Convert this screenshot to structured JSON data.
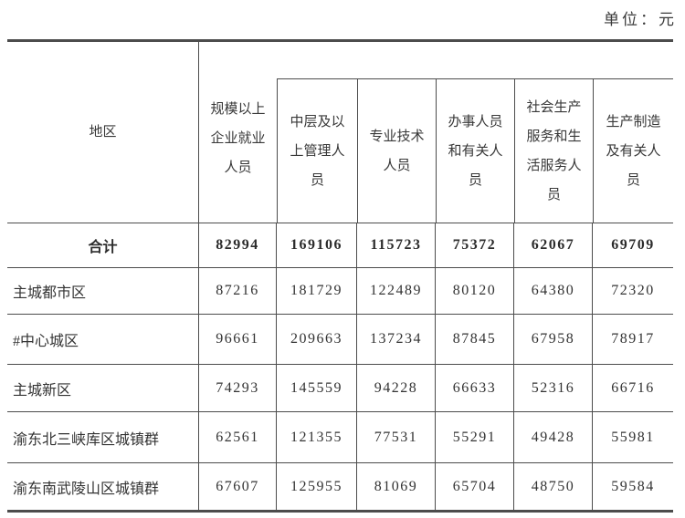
{
  "unit_label": "单位：元",
  "table": {
    "columns": {
      "region": "地区",
      "overall": "规模以上\n企业就业\n人员",
      "managers": "中层及以\n上管理人\n员",
      "professionals": "专业技术\n人员",
      "clerks": "办事人员\n和有关人\n员",
      "service": "社会生产\n服务和生\n活服务人\n员",
      "production": "生产制造\n及有关人\n员"
    },
    "rows": [
      {
        "label": "合计",
        "values": [
          "82994",
          "169106",
          "115723",
          "75372",
          "62067",
          "69709"
        ]
      },
      {
        "label": "主城都市区",
        "values": [
          "87216",
          "181729",
          "122489",
          "80120",
          "64380",
          "72320"
        ]
      },
      {
        "label": "#中心城区",
        "values": [
          "96661",
          "209663",
          "137234",
          "87845",
          "67958",
          "78917"
        ]
      },
      {
        "label": "主城新区",
        "values": [
          "74293",
          "145559",
          "94228",
          "66633",
          "52316",
          "66716"
        ]
      },
      {
        "label": "渝东北三峡库区城镇群",
        "values": [
          "62561",
          "121355",
          "77531",
          "55291",
          "49428",
          "55981"
        ]
      },
      {
        "label": "渝东南武陵山区城镇群",
        "values": [
          "67607",
          "125955",
          "81069",
          "65704",
          "48750",
          "59584"
        ]
      }
    ]
  }
}
